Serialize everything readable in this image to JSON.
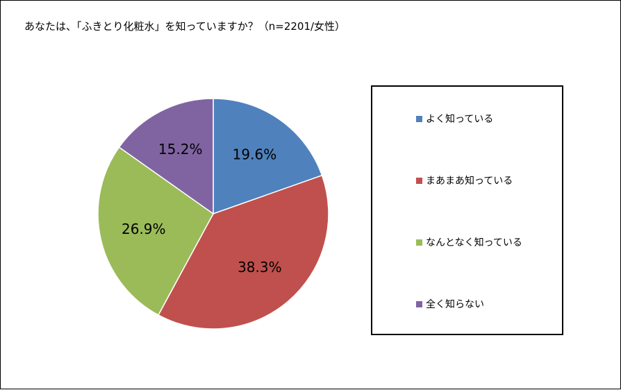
{
  "chart_data": {
    "type": "pie",
    "title": "あなたは、「ふきとり化粧水」を知っていますか？（n=2201/女性）",
    "slices": [
      {
        "name": "よく知っている",
        "value": 19.6,
        "label": "19.6%",
        "color": "#4F81BD"
      },
      {
        "name": "まあまあ知っている",
        "value": 38.3,
        "label": "38.3%",
        "color": "#C0504D"
      },
      {
        "name": "なんとなく知っている",
        "value": 26.9,
        "label": "26.9%",
        "color": "#9BBB59"
      },
      {
        "name": "全く知らない",
        "value": 15.2,
        "label": "15.2%",
        "color": "#8064A2"
      }
    ],
    "legend_placement": "right"
  }
}
